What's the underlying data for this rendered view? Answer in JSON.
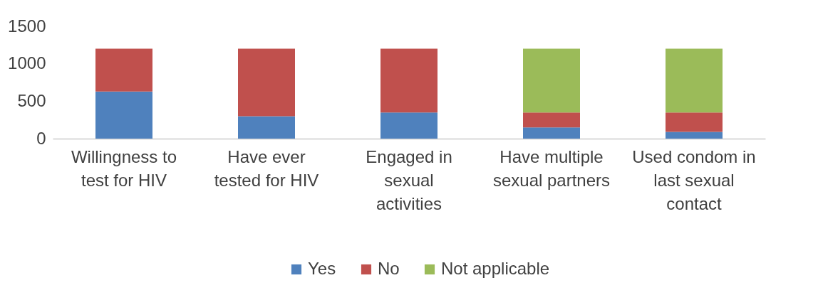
{
  "chart_data": {
    "type": "bar",
    "stacked": true,
    "categories": [
      "Willingness to test for HIV",
      "Have ever tested for HIV",
      "Engaged in sexual activities",
      "Have multiple sexual partners",
      "Used condom in last sexual contact"
    ],
    "series": [
      {
        "name": "Yes",
        "color": "#4f81bd",
        "values": [
          630,
          300,
          350,
          150,
          90
        ]
      },
      {
        "name": "No",
        "color": "#c0504d",
        "values": [
          570,
          900,
          850,
          200,
          260
        ]
      },
      {
        "name": "Not applicable",
        "color": "#9bbb59",
        "values": [
          0,
          0,
          0,
          850,
          850
        ]
      }
    ],
    "ylim": [
      0,
      1500
    ],
    "yticks": [
      0,
      500,
      {
        "value": 1000,
        "label": "1000"
      },
      {
        "value": 1500,
        "label": "1500"
      }
    ],
    "grid": false,
    "legend": "bottom"
  }
}
